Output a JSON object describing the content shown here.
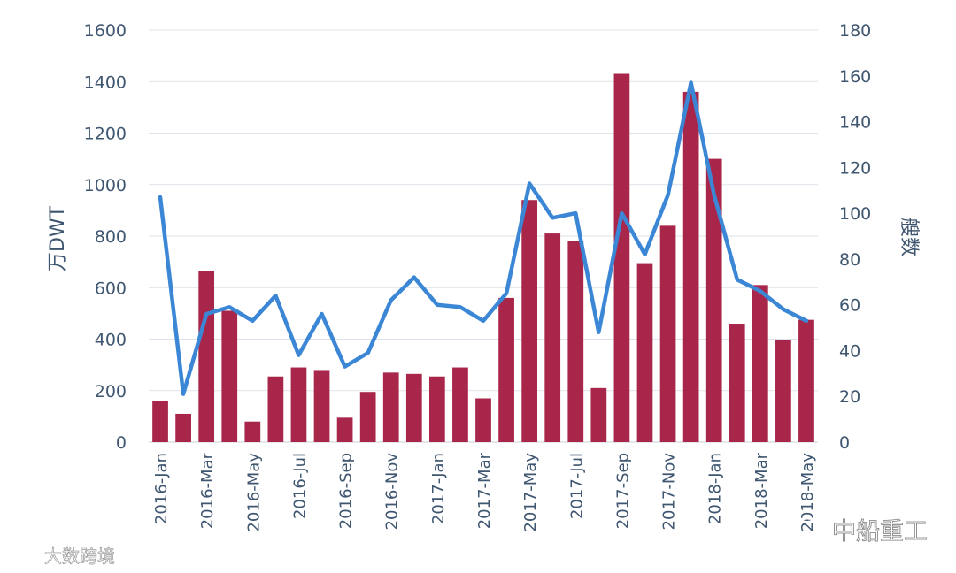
{
  "chart_data": {
    "type": "bar+line",
    "x": [
      "2016-Jan",
      "2016-Feb",
      "2016-Mar",
      "2016-Apr",
      "2016-May",
      "2016-Jun",
      "2016-Jul",
      "2016-Aug",
      "2016-Sep",
      "2016-Oct",
      "2016-Nov",
      "2016-Dec",
      "2017-Jan",
      "2017-Feb",
      "2017-Mar",
      "2017-Apr",
      "2017-May",
      "2017-Jun",
      "2017-Jul",
      "2017-Aug",
      "2017-Sep",
      "2017-Oct",
      "2017-Nov",
      "2017-Dec",
      "2018-Jan",
      "2018-Feb",
      "2018-Mar",
      "2018-Apr",
      "2018-May"
    ],
    "x_tick_labels": [
      "2016-Jan",
      "2016-Mar",
      "2016-May",
      "2016-Jul",
      "2016-Sep",
      "2016-Nov",
      "2017-Jan",
      "2017-Mar",
      "2017-May",
      "2017-Jul",
      "2017-Sep",
      "2017-Nov",
      "2018-Jan",
      "2018-Mar",
      "2018-May"
    ],
    "series": [
      {
        "axis": "left",
        "kind": "bar",
        "color": "#a8264a",
        "values": [
          160,
          110,
          665,
          510,
          80,
          255,
          290,
          280,
          95,
          195,
          270,
          265,
          255,
          290,
          170,
          560,
          940,
          810,
          780,
          210,
          1430,
          695,
          840,
          1360,
          1100,
          460,
          610,
          395,
          475
        ]
      },
      {
        "axis": "right",
        "kind": "line",
        "color": "#3b87d6",
        "values": [
          107,
          21,
          56,
          59,
          53,
          64,
          38,
          56,
          33,
          39,
          62,
          72,
          60,
          59,
          53,
          65,
          113,
          98,
          100,
          48,
          100,
          82,
          108,
          157,
          108,
          71,
          66,
          58,
          53
        ]
      }
    ],
    "ylabel": "万DWT",
    "y2label": "艘数",
    "ylim": [
      0,
      1600
    ],
    "y_ticks": [
      0,
      200,
      400,
      600,
      800,
      1000,
      1200,
      1400,
      1600
    ],
    "y2lim": [
      0,
      180
    ],
    "y2_ticks": [
      0,
      20,
      40,
      60,
      80,
      100,
      120,
      140,
      160,
      180
    ],
    "grid": true,
    "watermarks": [
      "大数跨境",
      "中船重工"
    ]
  }
}
